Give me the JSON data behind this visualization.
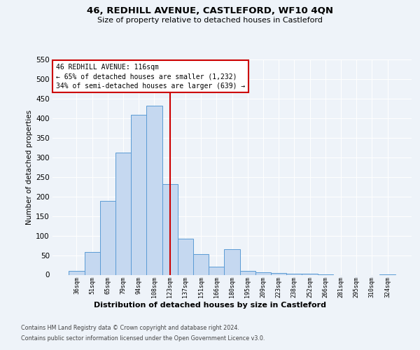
{
  "title": "46, REDHILL AVENUE, CASTLEFORD, WF10 4QN",
  "subtitle": "Size of property relative to detached houses in Castleford",
  "xlabel_bottom": "Distribution of detached houses by size in Castleford",
  "ylabel": "Number of detached properties",
  "annotation_line1": "46 REDHILL AVENUE: 116sqm",
  "annotation_line2": "← 65% of detached houses are smaller (1,232)",
  "annotation_line3": "34% of semi-detached houses are larger (639) →",
  "footer_line1": "Contains HM Land Registry data © Crown copyright and database right 2024.",
  "footer_line2": "Contains public sector information licensed under the Open Government Licence v3.0.",
  "bar_color": "#c5d8f0",
  "bar_edge_color": "#5b9bd5",
  "bg_color": "#eef3f9",
  "grid_color": "#ffffff",
  "vline_color": "#cc0000",
  "annotation_border_color": "#cc0000",
  "categories": [
    "36sqm",
    "51sqm",
    "65sqm",
    "79sqm",
    "94sqm",
    "108sqm",
    "123sqm",
    "137sqm",
    "151sqm",
    "166sqm",
    "180sqm",
    "195sqm",
    "209sqm",
    "223sqm",
    "238sqm",
    "252sqm",
    "266sqm",
    "281sqm",
    "295sqm",
    "310sqm",
    "324sqm"
  ],
  "values": [
    10,
    58,
    188,
    313,
    408,
    432,
    232,
    93,
    52,
    21,
    65,
    10,
    7,
    4,
    3,
    2,
    1,
    0,
    0,
    0,
    1
  ],
  "vline_x_index": 6.0,
  "ylim": [
    0,
    550
  ],
  "yticks": [
    0,
    50,
    100,
    150,
    200,
    250,
    300,
    350,
    400,
    450,
    500,
    550
  ],
  "title_fontsize": 9.5,
  "subtitle_fontsize": 8.0,
  "ylabel_fontsize": 7.5,
  "xtick_fontsize": 6.0,
  "ytick_fontsize": 7.5,
  "xlabel_bottom_fontsize": 8.0,
  "footer_fontsize": 5.8,
  "annotation_fontsize": 7.0
}
